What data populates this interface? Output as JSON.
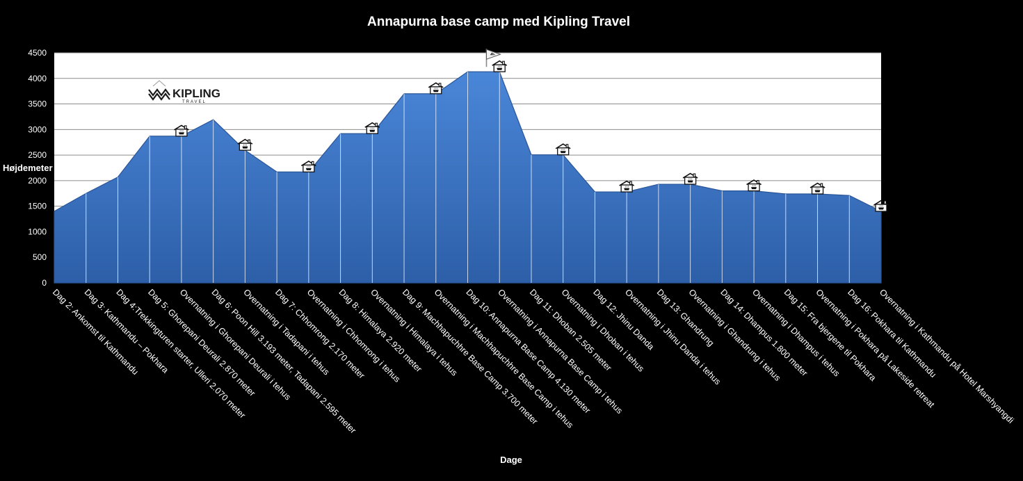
{
  "chart_data": {
    "type": "area",
    "title": "Annapurna base camp med Kipling Travel",
    "xlabel": "Dage",
    "ylabel": "Højdemeter",
    "ylim": [
      0,
      4500
    ],
    "yticks": [
      0,
      500,
      1000,
      1500,
      2000,
      2500,
      3000,
      3500,
      4000,
      4500
    ],
    "grid": true,
    "legend": "none",
    "colors": {
      "fill_top": "#4a86d8",
      "fill_bottom": "#2d5fa8",
      "line": "#2a5597",
      "background": "#000000",
      "plot_bg": "#ffffff"
    },
    "categories": [
      "Dag 2: Ankomst til Kathmandu",
      "Dag 3: Kathmandu – Pokhara",
      "Dag 4:Trekkingturen starter, Ulleri 2.070 meter",
      "Dag 5: Ghorepani Deurali 2.870 meter",
      "Overnatning i Ghorepani Deurali i tehus",
      "Dag 6: Poon Hill 3.193 meter, Tadapani 2.595 meter",
      "Overnatning i Tadapani  i tehus",
      "Dag 7: Chhomrong 2.170 meter",
      "Overnatning i Chhomrong i tehus",
      "Dag 8: Himalaya 2.920 meter",
      "Overnatning i Himalaya i tehus",
      "Dag 9: Machhapuchhre Base Camp 3.700 meter",
      "Overnatning i Machhapuchhre Base Camp i tehus",
      "Dag 10: Annapurna Base Camp 4.130 meter",
      "Overnatning i Annapurna Base Camp i tehus",
      "Dag 11: Dhoban 2.505 meter",
      "Overnatning i Dhoban i tehus",
      "Dag 12: Jhinu Danda",
      "Overnatning i Jhinu Danda i tehus",
      "Dag 13: Ghandrung",
      "Overnatning i Ghandrung i tehus",
      "Dag 14: Dhampus 1.800 meter",
      "Overnatning i Dhampus i tehus",
      "Dag 15: Fra bjergene til Pokhara",
      "Overnatning i Pokhara på Lakeside retreat",
      "Dag 16: Pokhara til Kathmandu",
      "Overnatning i Kathmandu på Hotel Marshyangdi"
    ],
    "values": [
      1400,
      1750,
      2070,
      2870,
      2870,
      3193,
      2595,
      2170,
      2170,
      2920,
      2920,
      3700,
      3700,
      4130,
      4130,
      2505,
      2505,
      1780,
      1780,
      1930,
      1930,
      1800,
      1800,
      1740,
      1740,
      1710,
      1400
    ],
    "markers": {
      "icon": "tea-house-icon",
      "at": [
        4,
        6,
        8,
        10,
        12,
        14,
        16,
        18,
        20,
        22,
        24,
        26
      ],
      "summit_flag": {
        "icon": "summit-flag-icon",
        "at": 13
      }
    },
    "logo": {
      "icon": "kipling-travel-logo",
      "text": "KIPLING",
      "subtext": "TRAVEL"
    }
  }
}
